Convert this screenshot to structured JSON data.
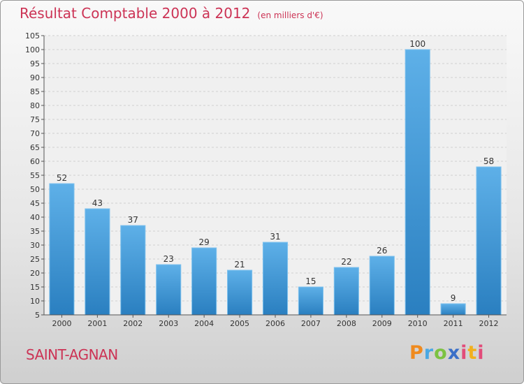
{
  "title": "Résultat Comptable 2000 à 2012",
  "unit": "(en milliers d'€)",
  "place": "SAINT-AGNAN",
  "logo": "Proxiti",
  "colors": {
    "bar_top": "#5eb0e8",
    "bar_bottom": "#2a7fc0",
    "title": "#cc3355"
  },
  "chart_data": {
    "type": "bar",
    "categories": [
      "2000",
      "2001",
      "2002",
      "2003",
      "2004",
      "2005",
      "2006",
      "2007",
      "2008",
      "2009",
      "2010",
      "2011",
      "2012"
    ],
    "values": [
      52,
      43,
      37,
      23,
      29,
      21,
      31,
      15,
      22,
      26,
      100,
      9,
      58
    ],
    "ylim": [
      5,
      105
    ],
    "yticks": [
      5,
      10,
      15,
      20,
      25,
      30,
      35,
      40,
      45,
      50,
      55,
      60,
      65,
      70,
      75,
      80,
      85,
      90,
      95,
      100,
      105
    ],
    "grid": true,
    "legend": "none",
    "data_labels": true
  }
}
